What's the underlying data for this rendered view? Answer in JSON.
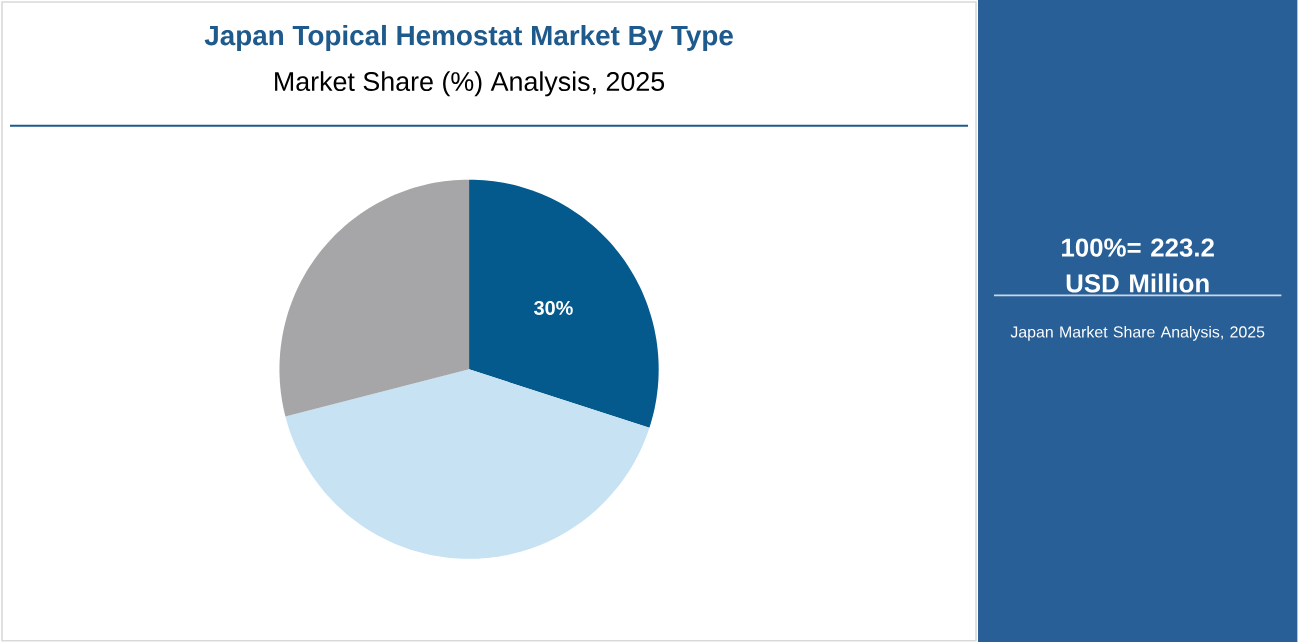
{
  "chart_data": {
    "type": "pie",
    "title": "Japan Topical Hemostat Market By Type",
    "subtitle": "Market Share (%) Analysis, 2025",
    "categories": [
      null,
      null,
      null
    ],
    "values": [
      30,
      41,
      29
    ],
    "colors": [
      "#045a8d",
      "#c6e2f3",
      "#a6a6a8"
    ],
    "value_labels": [
      "30%",
      null,
      null
    ],
    "annotations": [
      "100%= 223.2 USD Million",
      "Japan Market Share Analysis, 2025"
    ]
  }
}
